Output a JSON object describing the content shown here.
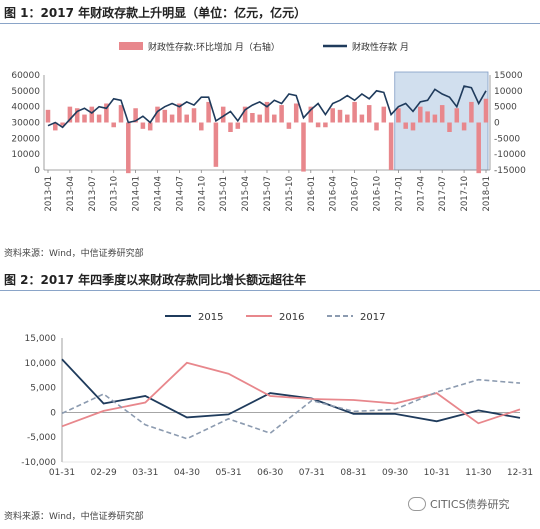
{
  "page": {
    "fig1_title": "图 1：2017 年财政存款上升明显（单位：亿元，亿元）",
    "fig2_title": "图 2：2017 年四季度以来财政存款同比增长额远超往年",
    "fig1_source": "资料来源：Wind，中信证券研究部",
    "fig2_source": "资料来源：Wind，中信证券研究部",
    "watermark_text": "CITICS债券研究"
  },
  "chart_data": [
    {
      "type": "bar+line",
      "title": "",
      "legend": {
        "placement": "top-center"
      },
      "series": [
        {
          "name": "财政性存款:环比增加 月（右轴）",
          "type": "bar",
          "axis": "right",
          "color": "#e8878c",
          "values": [
            4000,
            -2500,
            -1000,
            5000,
            4500,
            2500,
            5000,
            2500,
            6000,
            -1500,
            5500,
            -16000,
            4500,
            -2000,
            -2500,
            5000,
            4000,
            2500,
            6000,
            2500,
            4500,
            -2500,
            6500,
            -14000,
            5000,
            -3000,
            -2000,
            5000,
            3000,
            2500,
            6500,
            2500,
            5500,
            -2000,
            6000,
            -15500,
            5000,
            -1500,
            -1500,
            4500,
            4000,
            2500,
            6500,
            2500,
            5500,
            -2500,
            5000,
            -15000,
            4500,
            -2000,
            -2500,
            5000,
            3500,
            2500,
            5500,
            -3000,
            4500,
            -2500,
            6500,
            -16000,
            7500
          ]
        },
        {
          "name": "财政性存款 月",
          "type": "line",
          "axis": "left",
          "color": "#1f3b5c",
          "values": [
            28000,
            30000,
            27000,
            32000,
            37000,
            39000,
            36000,
            40000,
            39000,
            45000,
            44000,
            30000,
            31000,
            34000,
            30000,
            37000,
            40000,
            42000,
            40000,
            43000,
            41000,
            46000,
            46000,
            31000,
            34000,
            37000,
            31000,
            38000,
            41000,
            43000,
            40000,
            44000,
            42000,
            48000,
            47000,
            33000,
            38000,
            42000,
            35000,
            42000,
            44000,
            47000,
            44000,
            48000,
            45000,
            50000,
            49000,
            35000,
            40000,
            42000,
            37000,
            43000,
            44000,
            51000,
            48000,
            46000,
            40000,
            53000,
            52000,
            42000,
            50000
          ]
        }
      ],
      "x_labels": [
        "2013-01",
        "2013-04",
        "2013-07",
        "2013-10",
        "2014-01",
        "2014-04",
        "2014-07",
        "2014-10",
        "2015-01",
        "2015-04",
        "2015-07",
        "2015-10",
        "2016-01",
        "2016-04",
        "2016-07",
        "2016-10",
        "2017-01",
        "2017-04",
        "2017-07",
        "2017-10",
        "2018-01"
      ],
      "ylim_left": [
        0,
        60000
      ],
      "yticks_left": [
        "0",
        "10000",
        "20000",
        "30000",
        "40000",
        "50000",
        "60000"
      ],
      "ylim_right": [
        -15000,
        15000
      ],
      "yticks_right": [
        "-15000",
        "-10000",
        "-5000",
        "0",
        "5000",
        "10000",
        "15000"
      ],
      "highlight": {
        "from": "2017-01",
        "to": "2018-01",
        "color": "#c6d7ea"
      }
    },
    {
      "type": "line",
      "title": "",
      "legend": {
        "placement": "top-center"
      },
      "categories": [
        "01-31",
        "02-29",
        "03-31",
        "04-30",
        "05-31",
        "06-30",
        "07-31",
        "08-31",
        "09-30",
        "10-31",
        "11-30",
        "12-31"
      ],
      "ylim": [
        -10000,
        15000
      ],
      "yticks": [
        "-10,000",
        "-5,000",
        "0",
        "5,000",
        "10,000",
        "15,000"
      ],
      "series": [
        {
          "name": "2015",
          "color": "#1f3b5c",
          "dash": "solid",
          "values": [
            10700,
            1800,
            3300,
            -1000,
            -400,
            3900,
            2800,
            -300,
            -300,
            -1800,
            400,
            -1100
          ]
        },
        {
          "name": "2016",
          "color": "#e8878c",
          "dash": "solid",
          "values": [
            -2800,
            300,
            2000,
            10000,
            7800,
            3300,
            2700,
            2500,
            1800,
            3900,
            -2200,
            600
          ]
        },
        {
          "name": "2017",
          "color": "#8c9bb0",
          "dash": "dashed",
          "values": [
            -200,
            3700,
            -2500,
            -5300,
            -1300,
            -4200,
            2400,
            200,
            600,
            4100,
            6600,
            5900
          ]
        }
      ]
    }
  ]
}
